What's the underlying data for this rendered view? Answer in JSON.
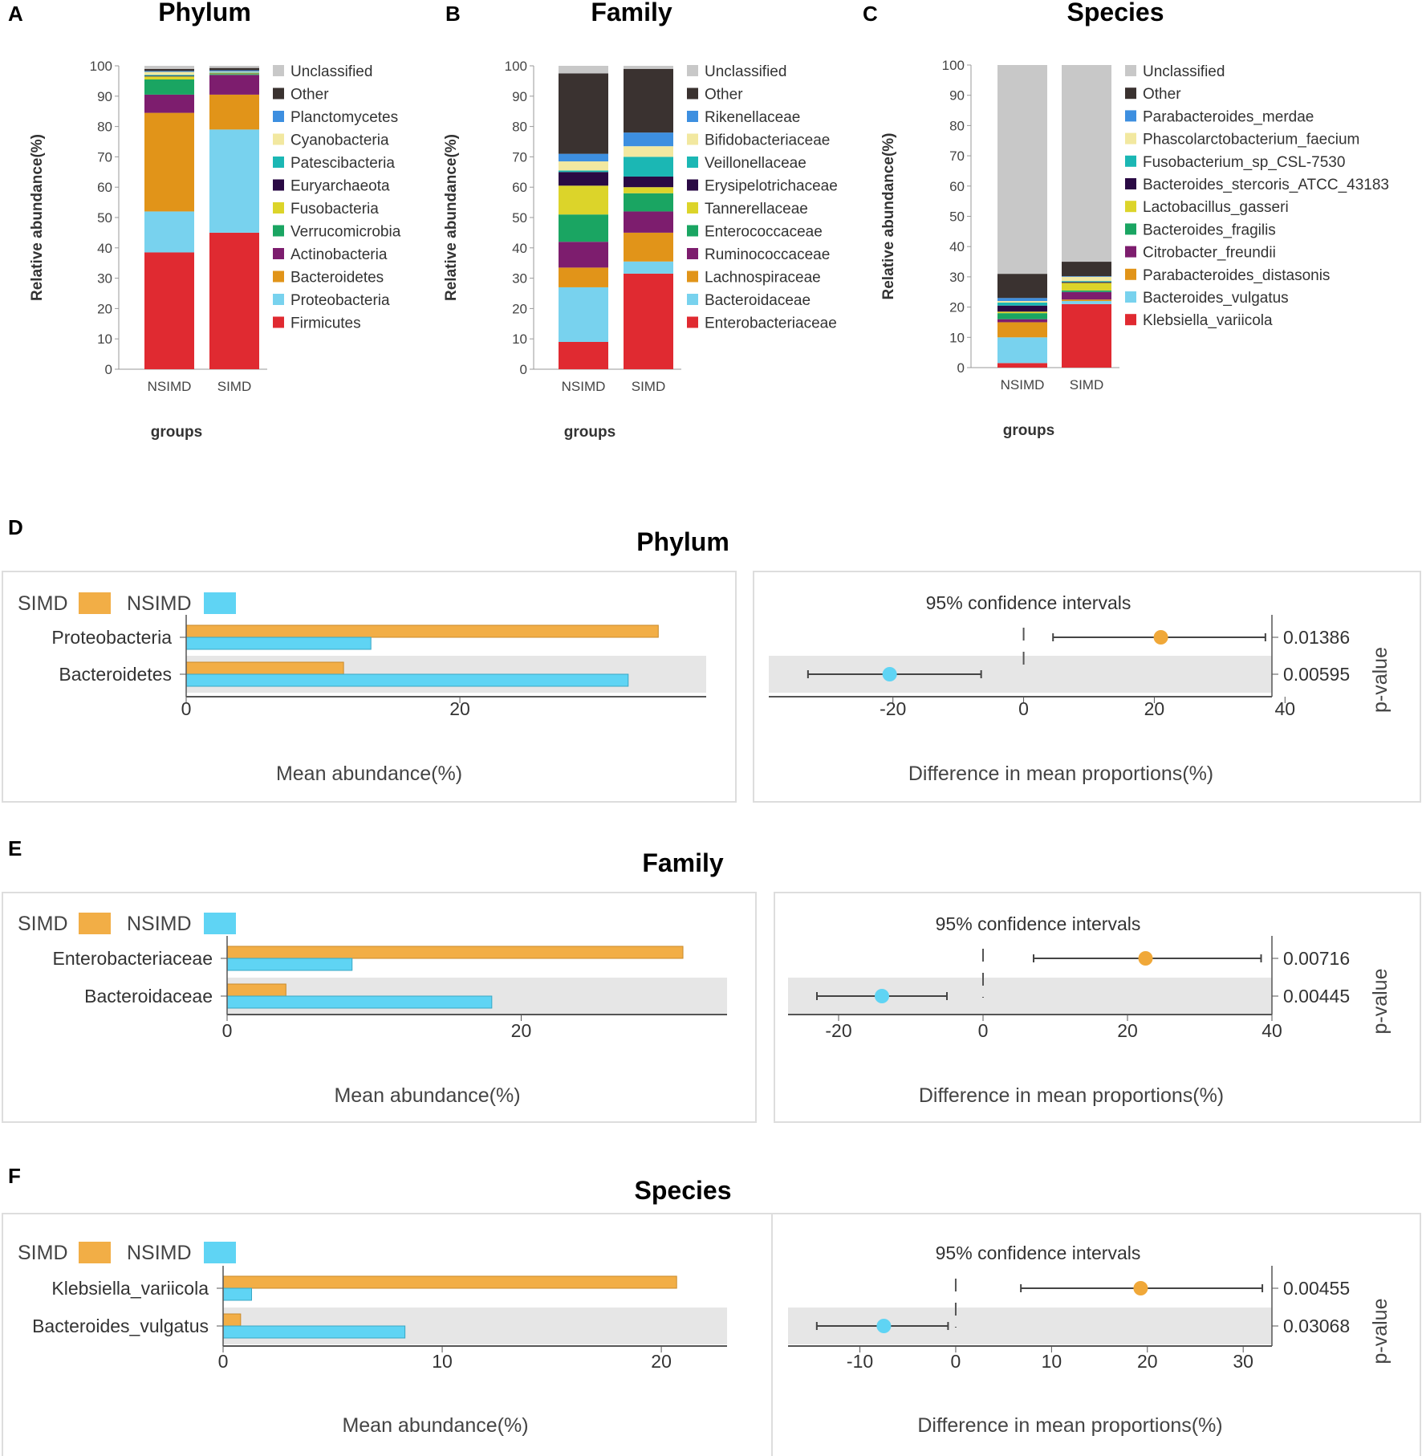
{
  "colors": {
    "unclassified": "#c8c8c8",
    "other": "#3a3230",
    "blue": "#3d8fe0",
    "cream": "#f2e8a0",
    "teal": "#1bb7b4",
    "navy": "#2a0a44",
    "yellow": "#dcd42a",
    "green": "#1aa562",
    "purple": "#7d1d6e",
    "orange": "#e19419",
    "lightblue": "#78d2ee",
    "red": "#e02a31",
    "simd": "#f2ae46",
    "nsimd": "#5fd4f4",
    "shade": "#e6e6e6",
    "frame": "#dddddd"
  },
  "stacked_charts": [
    {
      "panel": "A",
      "title": "Phylum",
      "ylabel": "Relative abundance(%)",
      "xlabel": "groups",
      "ylim": [
        0,
        100
      ],
      "yticks": [
        0,
        10,
        20,
        30,
        40,
        50,
        60,
        70,
        80,
        90,
        100
      ],
      "groups": [
        "NSIMD",
        "SIMD"
      ],
      "legend": [
        "Unclassified",
        "Other",
        "Planctomycetes",
        "Cyanobacteria",
        "Patescibacteria",
        "Euryarchaeota",
        "Fusobacteria",
        "Verrucomicrobia",
        "Actinobacteria",
        "Bacteroidetes",
        "Proteobacteria",
        "Firmicutes"
      ],
      "legend_colors": [
        "#c8c8c8",
        "#3a3230",
        "#3d8fe0",
        "#f2e8a0",
        "#1bb7b4",
        "#2a0a44",
        "#dcd42a",
        "#1aa562",
        "#7d1d6e",
        "#e19419",
        "#78d2ee",
        "#e02a31"
      ],
      "series_bottom_up": [
        {
          "name": "Firmicutes",
          "values": [
            38.5,
            45
          ]
        },
        {
          "name": "Proteobacteria",
          "values": [
            13.5,
            34
          ]
        },
        {
          "name": "Bacteroidetes",
          "values": [
            32.5,
            11.5
          ]
        },
        {
          "name": "Actinobacteria",
          "values": [
            6,
            6.5
          ]
        },
        {
          "name": "Verrucomicrobia",
          "values": [
            5,
            0.3
          ]
        },
        {
          "name": "Fusobacteria",
          "values": [
            1,
            0.2
          ]
        },
        {
          "name": "Euryarchaeota",
          "values": [
            0.2,
            0.1
          ]
        },
        {
          "name": "Patescibacteria",
          "values": [
            0.3,
            0.2
          ]
        },
        {
          "name": "Cyanobacteria",
          "values": [
            1,
            0.3
          ]
        },
        {
          "name": "Planctomycetes",
          "values": [
            0.3,
            0.4
          ]
        },
        {
          "name": "Other",
          "values": [
            0.7,
            0.8
          ]
        },
        {
          "name": "Unclassified",
          "values": [
            1,
            0.7
          ]
        }
      ]
    },
    {
      "panel": "B",
      "title": "Family",
      "ylabel": "Relative abundance(%)",
      "xlabel": "groups",
      "ylim": [
        0,
        100
      ],
      "yticks": [
        0,
        10,
        20,
        30,
        40,
        50,
        60,
        70,
        80,
        90,
        100
      ],
      "groups": [
        "NSIMD",
        "SIMD"
      ],
      "legend": [
        "Unclassified",
        "Other",
        "Rikenellaceae",
        "Bifidobacteriaceae",
        "Veillonellaceae",
        "Erysipelotrichaceae",
        "Tannerellaceae",
        "Enterococcaceae",
        "Ruminococcaceae",
        "Lachnospiraceae",
        "Bacteroidaceae",
        "Enterobacteriaceae"
      ],
      "legend_colors": [
        "#c8c8c8",
        "#3a3230",
        "#3d8fe0",
        "#f2e8a0",
        "#1bb7b4",
        "#2a0a44",
        "#dcd42a",
        "#1aa562",
        "#7d1d6e",
        "#e19419",
        "#78d2ee",
        "#e02a31"
      ],
      "series_bottom_up": [
        {
          "name": "Enterobacteriaceae",
          "values": [
            9,
            31.5
          ]
        },
        {
          "name": "Bacteroidaceae",
          "values": [
            18,
            4
          ]
        },
        {
          "name": "Lachnospiraceae",
          "values": [
            6.5,
            9.5
          ]
        },
        {
          "name": "Ruminococcaceae",
          "values": [
            8.5,
            7
          ]
        },
        {
          "name": "Enterococcaceae",
          "values": [
            9,
            6
          ]
        },
        {
          "name": "Tannerellaceae",
          "values": [
            9.5,
            2
          ]
        },
        {
          "name": "Erysipelotrichaceae",
          "values": [
            4.5,
            3.5
          ]
        },
        {
          "name": "Veillonellaceae",
          "values": [
            0.5,
            6.5
          ]
        },
        {
          "name": "Bifidobacteriaceae",
          "values": [
            3,
            3.5
          ]
        },
        {
          "name": "Rikenellaceae",
          "values": [
            2.5,
            4.5
          ]
        },
        {
          "name": "Other",
          "values": [
            26.5,
            21
          ]
        },
        {
          "name": "Unclassified",
          "values": [
            2.5,
            1
          ]
        }
      ]
    },
    {
      "panel": "C",
      "title": "Species",
      "ylabel": "Relative abundance(%)",
      "xlabel": "groups",
      "ylim": [
        0,
        100
      ],
      "yticks": [
        0,
        10,
        20,
        30,
        40,
        50,
        60,
        70,
        80,
        90,
        100
      ],
      "groups": [
        "NSIMD",
        "SIMD"
      ],
      "legend": [
        "Unclassified",
        "Other",
        "Parabacteroides_merdae",
        "Phascolarctobacterium_faecium",
        "Fusobacterium_sp_CSL-7530",
        "Bacteroides_stercoris_ATCC_43183",
        "Lactobacillus_gasseri",
        "Bacteroides_fragilis",
        "Citrobacter_freundii",
        "Parabacteroides_distasonis",
        "Bacteroides_vulgatus",
        "Klebsiella_variicola"
      ],
      "legend_colors": [
        "#c8c8c8",
        "#3a3230",
        "#3d8fe0",
        "#f2e8a0",
        "#1bb7b4",
        "#2a0a44",
        "#dcd42a",
        "#1aa562",
        "#7d1d6e",
        "#e19419",
        "#78d2ee",
        "#e02a31"
      ],
      "series_bottom_up": [
        {
          "name": "Klebsiella_variicola",
          "values": [
            1.5,
            21
          ]
        },
        {
          "name": "Bacteroides_vulgatus",
          "values": [
            8.5,
            1
          ]
        },
        {
          "name": "Parabacteroides_distasonis",
          "values": [
            5,
            0.5
          ]
        },
        {
          "name": "Citrobacter_freundii",
          "values": [
            1,
            2.5
          ]
        },
        {
          "name": "Bacteroides_fragilis",
          "values": [
            2,
            0.5
          ]
        },
        {
          "name": "Lactobacillus_gasseri",
          "values": [
            0.5,
            2.5
          ]
        },
        {
          "name": "Bacteroides_stercoris_ATCC_43183",
          "values": [
            2,
            0.3
          ]
        },
        {
          "name": "Fusobacterium_sp_CSL-7530",
          "values": [
            1,
            0.3
          ]
        },
        {
          "name": "Phascolarctobacterium_faecium",
          "values": [
            0.5,
            1.4
          ]
        },
        {
          "name": "Parabacteroides_merdae",
          "values": [
            1,
            0.2
          ]
        },
        {
          "name": "Other",
          "values": [
            8,
            4.8
          ]
        },
        {
          "name": "Unclassified",
          "values": [
            69,
            65
          ]
        }
      ]
    }
  ],
  "extended_error_plots": [
    {
      "panel": "D",
      "title": "Phylum",
      "legend": [
        "SIMD",
        "NSIMD"
      ],
      "bar_xlabel": "Mean abundance(%)",
      "bar_xlim": [
        0,
        38
      ],
      "bar_xticks": [
        0,
        20
      ],
      "ci_title": "95% confidence intervals",
      "ci_xlabel": "Difference in mean proportions(%)",
      "ci_xlim": [
        -39,
        38
      ],
      "ci_xticks": [
        -20,
        0,
        20,
        40
      ],
      "pvalue_label": "p-value",
      "rows": [
        {
          "name": "Proteobacteria",
          "simd": 34.5,
          "nsimd": 13.5,
          "diff": 21,
          "ci_low": 4.5,
          "ci_high": 37,
          "p": "0.01386",
          "winner": "simd"
        },
        {
          "name": "Bacteroidetes",
          "simd": 11.5,
          "nsimd": 32.3,
          "diff": -20.5,
          "ci_low": -33,
          "ci_high": -6.5,
          "p": "0.00595",
          "winner": "nsimd"
        }
      ]
    },
    {
      "panel": "E",
      "title": "Family",
      "legend": [
        "SIMD",
        "NSIMD"
      ],
      "bar_xlabel": "Mean abundance(%)",
      "bar_xlim": [
        0,
        34
      ],
      "bar_xticks": [
        0,
        20
      ],
      "ci_title": "95% confidence intervals",
      "ci_xlabel": "Difference in mean proportions(%)",
      "ci_xlim": [
        -27,
        40
      ],
      "ci_xticks": [
        -20,
        0,
        20,
        40
      ],
      "pvalue_label": "p-value",
      "rows": [
        {
          "name": "Enterobacteriaceae",
          "simd": 31,
          "nsimd": 8.5,
          "diff": 22.5,
          "ci_low": 7,
          "ci_high": 38.5,
          "p": "0.00716",
          "winner": "simd"
        },
        {
          "name": "Bacteroidaceae",
          "simd": 4,
          "nsimd": 18,
          "diff": -14,
          "ci_low": -23,
          "ci_high": -5,
          "p": "0.00445",
          "winner": "nsimd"
        }
      ]
    },
    {
      "panel": "F",
      "title": "Species",
      "legend": [
        "SIMD",
        "NSIMD"
      ],
      "bar_xlabel": "Mean abundance(%)",
      "bar_xlim": [
        0,
        23
      ],
      "bar_xticks": [
        0,
        10,
        20
      ],
      "ci_title": "95% confidence intervals",
      "ci_xlabel": "Difference in mean proportions(%)",
      "ci_xlim": [
        -17.5,
        33
      ],
      "ci_xticks": [
        -10,
        0,
        10,
        20,
        30
      ],
      "pvalue_label": "p-value",
      "rows": [
        {
          "name": "Klebsiella_variicola",
          "simd": 20.7,
          "nsimd": 1.3,
          "diff": 19.3,
          "ci_low": 6.8,
          "ci_high": 32,
          "p": "0.00455",
          "winner": "simd"
        },
        {
          "name": "Bacteroides_vulgatus",
          "simd": 0.8,
          "nsimd": 8.3,
          "diff": -7.5,
          "ci_low": -14.5,
          "ci_high": -0.8,
          "p": "0.03068",
          "winner": "nsimd"
        }
      ]
    }
  ]
}
